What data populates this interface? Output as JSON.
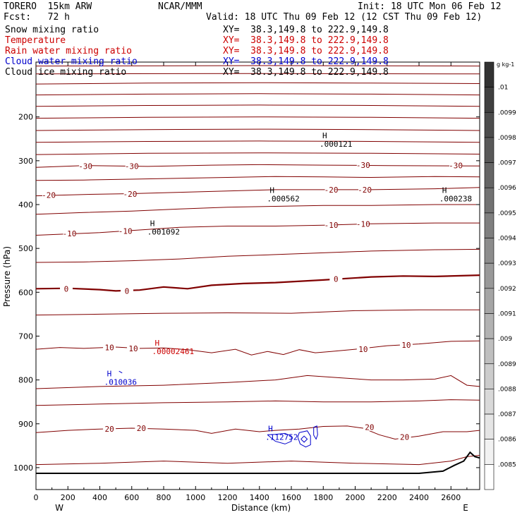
{
  "header": {
    "model": "TORERO  15km ARW",
    "center": "NCAR/MMM",
    "init": "Init: 18 UTC Mon 06 Feb 12",
    "fcst": "Fcst:   72 h",
    "valid": "Valid: 18 UTC Thu 09 Feb 12 (12 CST Thu 09 Feb 12)"
  },
  "fields": [
    {
      "name": "Snow mixing ratio",
      "xy": "",
      "color": "#000000"
    },
    {
      "name": "Temperature",
      "xy": "XY=  38.3,149.8 to 222.9,149.8",
      "color": "#cc0000"
    },
    {
      "name": "Rain water mixing ratio",
      "xy": "XY=  38.3,149.8 to 222.9,149.8",
      "color": "#cc0000"
    },
    {
      "name": "Cloud water mixing ratio",
      "xy": "XY=  38.3,149.8 to 222.9,149.8",
      "color": "#0000cc"
    },
    {
      "name": "Cloud ice mixing ratio",
      "xy": "XY=  38.3,149.8 to 222.9,149.8",
      "color": "#000000"
    }
  ],
  "snow_xy": "XY=  38.3,149.8 to 222.9,149.8",
  "colors": {
    "temperature": "#800000",
    "rain": "#cc0000",
    "cloud_water": "#0000cc",
    "ice": "#000000",
    "terrain": "#000000"
  },
  "chart_data": {
    "type": "cross-section contour",
    "xlabel": "Distance (km)",
    "ylabel": "Pressure (hPa)",
    "xlim": [
      0,
      2780
    ],
    "ylim": [
      1050,
      75
    ],
    "x_ticks": [
      0,
      200,
      400,
      600,
      800,
      1000,
      1200,
      1400,
      1600,
      1800,
      2000,
      2200,
      2400,
      2600
    ],
    "y_ticks": [
      200,
      300,
      400,
      500,
      600,
      700,
      800,
      900,
      1000
    ],
    "endpoints": {
      "left": "W",
      "right": "E"
    },
    "isotherm_interval_c": 5,
    "isotherms": [
      {
        "value": -50,
        "pts": [
          [
            0,
            84
          ],
          [
            1400,
            83
          ],
          [
            2780,
            84
          ]
        ]
      },
      {
        "value": -50,
        "pts": [
          [
            0,
            102
          ],
          [
            1400,
            101
          ],
          [
            2780,
            102
          ]
        ]
      },
      {
        "value": -45,
        "pts": [
          [
            0,
            125
          ],
          [
            700,
            123
          ],
          [
            1400,
            122
          ],
          [
            2100,
            123
          ],
          [
            2780,
            124
          ]
        ]
      },
      {
        "value": -45,
        "pts": [
          [
            0,
            150
          ],
          [
            700,
            148
          ],
          [
            1400,
            147
          ],
          [
            2100,
            148
          ],
          [
            2780,
            150
          ]
        ]
      },
      {
        "value": -40,
        "pts": [
          [
            0,
            176
          ],
          [
            700,
            174
          ],
          [
            1400,
            173
          ],
          [
            2100,
            174
          ],
          [
            2780,
            176
          ]
        ]
      },
      {
        "value": -40,
        "pts": [
          [
            0,
            203
          ],
          [
            700,
            201
          ],
          [
            1400,
            200
          ],
          [
            2100,
            201
          ],
          [
            2780,
            203
          ]
        ]
      },
      {
        "value": -35,
        "pts": [
          [
            0,
            231
          ],
          [
            700,
            229
          ],
          [
            1400,
            228
          ],
          [
            2100,
            229
          ],
          [
            2780,
            231
          ]
        ]
      },
      {
        "value": -35,
        "pts": [
          [
            0,
            258
          ],
          [
            700,
            256
          ],
          [
            1400,
            255
          ],
          [
            2100,
            256
          ],
          [
            2780,
            258
          ]
        ]
      },
      {
        "value": -30,
        "pts": [
          [
            0,
            286
          ],
          [
            700,
            283
          ],
          [
            1400,
            282
          ],
          [
            2100,
            283
          ],
          [
            2780,
            285
          ]
        ]
      },
      {
        "value": -30,
        "pts": [
          [
            0,
            315
          ],
          [
            300,
            311
          ],
          [
            700,
            313
          ],
          [
            1100,
            310
          ],
          [
            1400,
            309
          ],
          [
            1800,
            310
          ],
          [
            2200,
            311
          ],
          [
            2780,
            312
          ]
        ]
      },
      {
        "value": -25,
        "pts": [
          [
            0,
            345
          ],
          [
            300,
            344
          ],
          [
            600,
            342
          ],
          [
            900,
            340
          ],
          [
            1200,
            338
          ],
          [
            1500,
            336
          ],
          [
            1800,
            337
          ],
          [
            2100,
            338
          ],
          [
            2500,
            336
          ],
          [
            2780,
            337
          ]
        ]
      },
      {
        "value": -20,
        "pts": [
          [
            0,
            380
          ],
          [
            300,
            377
          ],
          [
            600,
            375
          ],
          [
            900,
            372
          ],
          [
            1200,
            369
          ],
          [
            1500,
            366
          ],
          [
            1800,
            366
          ],
          [
            2100,
            366
          ],
          [
            2500,
            364
          ],
          [
            2780,
            361
          ]
        ]
      },
      {
        "value": -15,
        "pts": [
          [
            0,
            422
          ],
          [
            300,
            418
          ],
          [
            600,
            415
          ],
          [
            900,
            410
          ],
          [
            1200,
            406
          ],
          [
            1500,
            404
          ],
          [
            1800,
            402
          ],
          [
            2100,
            402
          ],
          [
            2500,
            400
          ],
          [
            2780,
            400
          ]
        ]
      },
      {
        "value": -10,
        "pts": [
          [
            0,
            470
          ],
          [
            200,
            467
          ],
          [
            400,
            464
          ],
          [
            600,
            459
          ],
          [
            900,
            452
          ],
          [
            1200,
            449
          ],
          [
            1500,
            449
          ],
          [
            1800,
            447
          ],
          [
            2100,
            444
          ],
          [
            2500,
            442
          ],
          [
            2780,
            442
          ]
        ]
      },
      {
        "value": -5,
        "pts": [
          [
            0,
            532
          ],
          [
            300,
            531
          ],
          [
            600,
            528
          ],
          [
            900,
            524
          ],
          [
            1200,
            518
          ],
          [
            1500,
            514
          ],
          [
            1800,
            510
          ],
          [
            2100,
            506
          ],
          [
            2500,
            503
          ],
          [
            2780,
            502
          ]
        ]
      },
      {
        "value": 0,
        "pts": [
          [
            0,
            592
          ],
          [
            200,
            591
          ],
          [
            400,
            594
          ],
          [
            500,
            597
          ],
          [
            650,
            595
          ],
          [
            800,
            588
          ],
          [
            950,
            592
          ],
          [
            1100,
            584
          ],
          [
            1300,
            580
          ],
          [
            1500,
            578
          ],
          [
            1800,
            572
          ],
          [
            2100,
            565
          ],
          [
            2300,
            563
          ],
          [
            2500,
            564
          ],
          [
            2780,
            561
          ]
        ]
      },
      {
        "value": 5,
        "pts": [
          [
            0,
            652
          ],
          [
            400,
            650
          ],
          [
            800,
            648
          ],
          [
            1200,
            647
          ],
          [
            1600,
            648
          ],
          [
            2000,
            642
          ],
          [
            2400,
            640
          ],
          [
            2780,
            640
          ]
        ]
      },
      {
        "value": 10,
        "pts": [
          [
            0,
            730
          ],
          [
            150,
            726
          ],
          [
            300,
            728
          ],
          [
            500,
            725
          ],
          [
            650,
            728
          ],
          [
            800,
            727
          ],
          [
            950,
            731
          ],
          [
            1100,
            738
          ],
          [
            1250,
            730
          ],
          [
            1350,
            743
          ],
          [
            1450,
            735
          ],
          [
            1550,
            742
          ],
          [
            1650,
            731
          ],
          [
            1750,
            738
          ],
          [
            1850,
            735
          ],
          [
            2000,
            730
          ],
          [
            2200,
            722
          ],
          [
            2400,
            718
          ],
          [
            2600,
            712
          ],
          [
            2780,
            711
          ]
        ]
      },
      {
        "value": 15,
        "pts": [
          [
            0,
            820
          ],
          [
            400,
            815
          ],
          [
            800,
            812
          ],
          [
            1200,
            806
          ],
          [
            1500,
            800
          ],
          [
            1700,
            790
          ],
          [
            1900,
            795
          ],
          [
            2100,
            800
          ],
          [
            2300,
            800
          ],
          [
            2500,
            798
          ],
          [
            2600,
            790
          ],
          [
            2700,
            812
          ],
          [
            2780,
            815
          ]
        ]
      },
      {
        "value": 15,
        "pts": [
          [
            0,
            858
          ],
          [
            400,
            855
          ],
          [
            800,
            852
          ],
          [
            1200,
            850
          ],
          [
            1500,
            848
          ],
          [
            1800,
            850
          ],
          [
            2100,
            850
          ],
          [
            2400,
            848
          ],
          [
            2600,
            845
          ],
          [
            2780,
            846
          ]
        ]
      },
      {
        "value": 20,
        "pts": [
          [
            0,
            920
          ],
          [
            200,
            915
          ],
          [
            400,
            912
          ],
          [
            600,
            910
          ],
          [
            800,
            912
          ],
          [
            1000,
            915
          ],
          [
            1100,
            922
          ],
          [
            1250,
            912
          ],
          [
            1400,
            918
          ],
          [
            1500,
            915
          ],
          [
            1650,
            912
          ],
          [
            1800,
            906
          ],
          [
            1950,
            905
          ],
          [
            2050,
            910
          ],
          [
            2150,
            925
          ],
          [
            2250,
            935
          ],
          [
            2400,
            928
          ],
          [
            2550,
            918
          ],
          [
            2700,
            918
          ],
          [
            2780,
            915
          ]
        ]
      },
      {
        "value": 25,
        "pts": [
          [
            0,
            993
          ],
          [
            400,
            990
          ],
          [
            800,
            985
          ],
          [
            1200,
            990
          ],
          [
            1600,
            985
          ],
          [
            2000,
            990
          ],
          [
            2400,
            993
          ],
          [
            2600,
            985
          ],
          [
            2700,
            975
          ],
          [
            2780,
            972
          ]
        ]
      }
    ],
    "isotherm_labels": [
      {
        "text": "-30",
        "x": 310,
        "p": 312
      },
      {
        "text": "-30",
        "x": 600,
        "p": 312
      },
      {
        "text": "-30",
        "x": 2050,
        "p": 310
      },
      {
        "text": "-30",
        "x": 2630,
        "p": 311
      },
      {
        "text": "-20",
        "x": 80,
        "p": 378
      },
      {
        "text": "-20",
        "x": 590,
        "p": 376
      },
      {
        "text": "-20",
        "x": 1850,
        "p": 366
      },
      {
        "text": "-20",
        "x": 2060,
        "p": 366
      },
      {
        "text": "-10",
        "x": 210,
        "p": 466
      },
      {
        "text": "-10",
        "x": 560,
        "p": 460
      },
      {
        "text": "-10",
        "x": 1850,
        "p": 447
      },
      {
        "text": "-10",
        "x": 2050,
        "p": 444
      },
      {
        "text": "0",
        "x": 190,
        "p": 592
      },
      {
        "text": "0",
        "x": 570,
        "p": 597
      },
      {
        "text": "0",
        "x": 1880,
        "p": 570
      },
      {
        "text": "10",
        "x": 460,
        "p": 726
      },
      {
        "text": "10",
        "x": 610,
        "p": 728
      },
      {
        "text": "10",
        "x": 2050,
        "p": 730
      },
      {
        "text": "10",
        "x": 2320,
        "p": 720
      },
      {
        "text": "20",
        "x": 460,
        "p": 912
      },
      {
        "text": "20",
        "x": 660,
        "p": 910
      },
      {
        "text": "20",
        "x": 2090,
        "p": 908
      },
      {
        "text": "20",
        "x": 2310,
        "p": 930
      }
    ],
    "maxima": [
      {
        "text": ".000121",
        "x": 1830,
        "p": 262,
        "field": "ice"
      },
      {
        "text": ".000562",
        "x": 1500,
        "p": 386,
        "field": "ice"
      },
      {
        "text": ".000238",
        "x": 2580,
        "p": 386,
        "field": "ice"
      },
      {
        "text": ".001092",
        "x": 750,
        "p": 462,
        "field": "ice"
      },
      {
        "text": ".00002461",
        "x": 780,
        "p": 735,
        "field": "rain"
      },
      {
        "text": ".010036",
        "x": 480,
        "p": 805,
        "field": "cloud_water"
      },
      {
        "text": ".112752",
        "x": 1490,
        "p": 930,
        "field": "cloud_water"
      }
    ],
    "max_marker": "H",
    "cloud_water_contours": [
      {
        "pts": [
          [
            1450,
            925
          ],
          [
            1500,
            940
          ],
          [
            1560,
            946
          ],
          [
            1600,
            940
          ],
          [
            1600,
            928
          ],
          [
            1560,
            922
          ],
          [
            1500,
            924
          ],
          [
            1450,
            925
          ]
        ]
      },
      {
        "pts": [
          [
            1650,
            920
          ],
          [
            1700,
            916
          ],
          [
            1720,
            928
          ],
          [
            1720,
            948
          ],
          [
            1690,
            953
          ],
          [
            1655,
            946
          ],
          [
            1640,
            930
          ],
          [
            1650,
            920
          ]
        ]
      },
      {
        "pts": [
          [
            1660,
            935
          ],
          [
            1680,
            928
          ],
          [
            1700,
            935
          ],
          [
            1680,
            942
          ],
          [
            1660,
            935
          ]
        ]
      },
      {
        "pts": [
          [
            1740,
            908
          ],
          [
            1760,
            905
          ],
          [
            1765,
            925
          ],
          [
            1755,
            935
          ],
          [
            1740,
            926
          ],
          [
            1740,
            908
          ]
        ]
      },
      {
        "pts": [
          [
            520,
            780
          ],
          [
            540,
            784
          ]
        ]
      }
    ],
    "terrain": [
      [
        0,
        1013
      ],
      [
        2400,
        1013
      ],
      [
        2550,
        1008
      ],
      [
        2620,
        995
      ],
      [
        2680,
        985
      ],
      [
        2720,
        965
      ],
      [
        2750,
        975
      ],
      [
        2780,
        978
      ]
    ],
    "colorbar": {
      "unit": "g kg-1",
      "ticks": [
        ".01",
        ".0099",
        ".0098",
        ".0097",
        ".0096",
        ".0095",
        ".0094",
        ".0093",
        ".0092",
        ".0091",
        ".009",
        ".0089",
        ".0088",
        ".0087",
        ".0086",
        ".0085"
      ]
    }
  }
}
